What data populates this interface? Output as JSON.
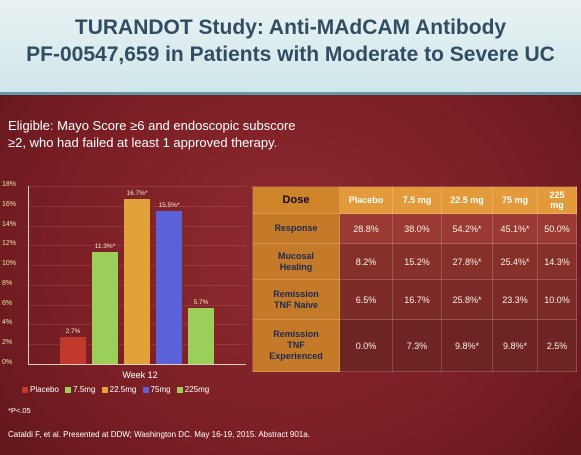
{
  "title": {
    "line1": "TURANDOT Study: Anti-MAdCAM Antibody",
    "line2": "PF-00547,659 in Patients with Moderate to Severe UC"
  },
  "eligible": {
    "line1": "Eligible: Mayo Score ≥6 and endoscopic subscore",
    "line2": "≥2, who had failed at least 1 approved therapy."
  },
  "chart_data": {
    "type": "bar",
    "categories": [
      "Week 12"
    ],
    "series": [
      {
        "name": "Placebo",
        "values": [
          2.7
        ],
        "label": "2.7%",
        "color": "#c0392b"
      },
      {
        "name": "7.5mg",
        "values": [
          11.3
        ],
        "label": "11.3%*",
        "color": "#9ccf5a"
      },
      {
        "name": "22.5mg",
        "values": [
          16.7
        ],
        "label": "16.7%*",
        "color": "#e2a23a"
      },
      {
        "name": "75mg",
        "values": [
          15.5
        ],
        "label": "15.5%*",
        "color": "#5b62d8"
      },
      {
        "name": "225mg",
        "values": [
          5.7
        ],
        "label": "5.7%",
        "color": "#9ccf5a"
      }
    ],
    "y_ticks": [
      "0%",
      "2%",
      "4%",
      "6%",
      "8%",
      "10%",
      "12%",
      "14%",
      "16%",
      "18%"
    ],
    "ylim": [
      0,
      18
    ],
    "grid": true,
    "legend_position": "bottom"
  },
  "legend": {
    "items": [
      {
        "label": "Placebo",
        "color": "#c0392b"
      },
      {
        "label": "7.5mg",
        "color": "#9ccf5a"
      },
      {
        "label": "22.5mg",
        "color": "#e2a23a"
      },
      {
        "label": "75mg",
        "color": "#5b62d8"
      },
      {
        "label": "225mg",
        "color": "#9ccf5a"
      }
    ]
  },
  "table": {
    "headers": [
      "Dose",
      "Placebo",
      "7.5 mg",
      "22.5 mg",
      "75 mg",
      "225 mg"
    ],
    "rows": [
      {
        "label_lines": [
          "Response"
        ],
        "values": [
          "28.8%",
          "38.0%",
          "54.2%*",
          "45.1%*",
          "50.0%"
        ]
      },
      {
        "label_lines": [
          "Mucosal",
          "Healing"
        ],
        "values": [
          "8.2%",
          "15.2%",
          "27.8%*",
          "25.4%*",
          "14.3%"
        ]
      },
      {
        "label_lines": [
          "Remission",
          "TNF Naive"
        ],
        "values": [
          "6.5%",
          "16.7%",
          "25.8%*",
          "23.3%",
          "10.0%"
        ]
      },
      {
        "label_lines": [
          "Remission",
          "TNF",
          "Experienced"
        ],
        "values": [
          "0.0%",
          "7.3%",
          "9.8%*",
          "9.8%*",
          "2.5%"
        ]
      }
    ]
  },
  "footnote": "*P<.05",
  "citation": "Cataldi F, et al. Presented at DDW; Washington DC. May 16-19, 2015. Abstract 901a."
}
